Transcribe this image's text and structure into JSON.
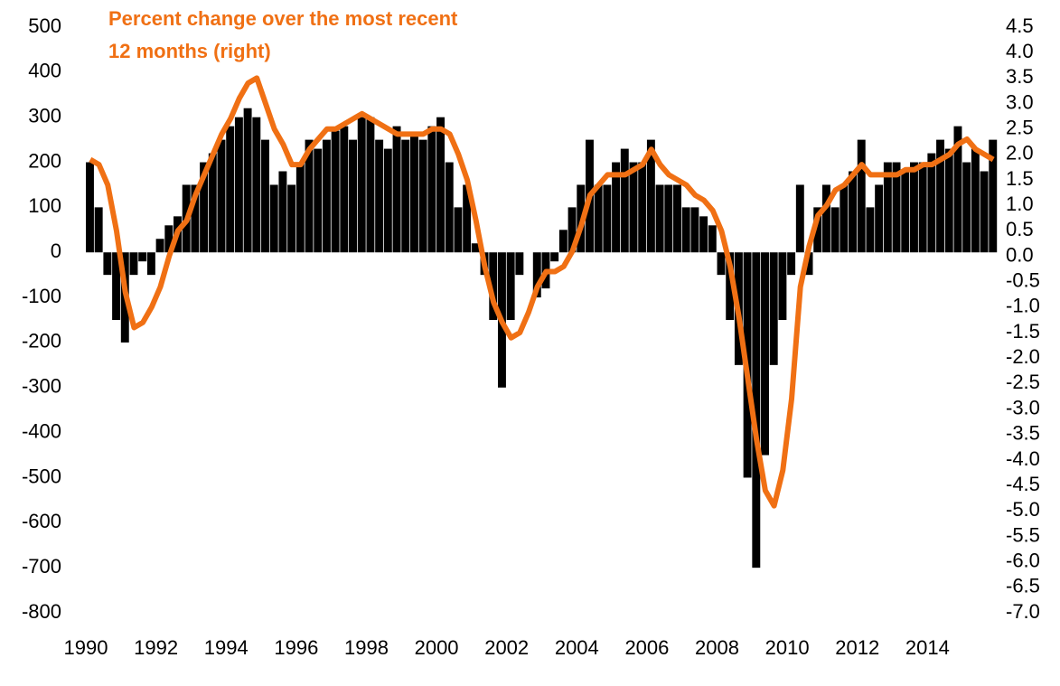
{
  "chart_data": {
    "type": "bar-line",
    "annotation": [
      "Percent change over the most recent",
      "12 months (right)"
    ],
    "x": [
      1990,
      1990.25,
      1990.5,
      1990.75,
      1991,
      1991.25,
      1991.5,
      1991.75,
      1992,
      1992.25,
      1992.5,
      1992.75,
      1993,
      1993.25,
      1993.5,
      1993.75,
      1994,
      1994.25,
      1994.5,
      1994.75,
      1995,
      1995.25,
      1995.5,
      1995.75,
      1996,
      1996.25,
      1996.5,
      1996.75,
      1997,
      1997.25,
      1997.5,
      1997.75,
      1998,
      1998.25,
      1998.5,
      1998.75,
      1999,
      1999.25,
      1999.5,
      1999.75,
      2000,
      2000.25,
      2000.5,
      2000.75,
      2001,
      2001.25,
      2001.5,
      2001.75,
      2002,
      2002.25,
      2002.5,
      2002.75,
      2003,
      2003.25,
      2003.5,
      2003.75,
      2004,
      2004.25,
      2004.5,
      2004.75,
      2005,
      2005.25,
      2005.5,
      2005.75,
      2006,
      2006.25,
      2006.5,
      2006.75,
      2007,
      2007.25,
      2007.5,
      2007.75,
      2008,
      2008.25,
      2008.5,
      2008.75,
      2009,
      2009.25,
      2009.5,
      2009.75,
      2010,
      2010.25,
      2010.5,
      2010.75,
      2011,
      2011.25,
      2011.5,
      2011.75,
      2012,
      2012.25,
      2012.5,
      2012.75,
      2013,
      2013.25,
      2013.5,
      2013.75,
      2014,
      2014.25,
      2014.5,
      2014.75,
      2015,
      2015.25,
      2015.5,
      2015.75
    ],
    "series": [
      {
        "type": "bar",
        "color": "#000000",
        "values": [
          200,
          100,
          -50,
          -150,
          -200,
          -50,
          -20,
          -50,
          30,
          60,
          80,
          150,
          150,
          200,
          220,
          250,
          280,
          300,
          320,
          300,
          250,
          150,
          180,
          150,
          200,
          250,
          230,
          250,
          270,
          280,
          250,
          300,
          300,
          250,
          230,
          280,
          250,
          260,
          250,
          280,
          300,
          200,
          100,
          150,
          20,
          -50,
          -150,
          -300,
          -150,
          -50,
          0,
          -100,
          -80,
          -20,
          50,
          100,
          150,
          250,
          150,
          150,
          200,
          230,
          200,
          200,
          250,
          150,
          150,
          150,
          100,
          100,
          80,
          60,
          -50,
          -150,
          -250,
          -500,
          -700,
          -450,
          -250,
          -150,
          -50,
          150,
          -50,
          100,
          150,
          100,
          150,
          180,
          250,
          100,
          150,
          200,
          200,
          180,
          200,
          200,
          220,
          250,
          230,
          280,
          200,
          230,
          180,
          250
        ]
      },
      {
        "type": "line",
        "axis": "y2",
        "color": "#f07014",
        "values": [
          1.9,
          1.8,
          1.4,
          0.5,
          -0.7,
          -1.4,
          -1.3,
          -1.0,
          -0.6,
          0.0,
          0.5,
          0.7,
          1.2,
          1.6,
          2.0,
          2.4,
          2.7,
          3.1,
          3.4,
          3.5,
          3.0,
          2.5,
          2.2,
          1.8,
          1.8,
          2.1,
          2.3,
          2.5,
          2.5,
          2.6,
          2.7,
          2.8,
          2.7,
          2.6,
          2.5,
          2.4,
          2.4,
          2.4,
          2.4,
          2.5,
          2.5,
          2.4,
          2.0,
          1.5,
          0.7,
          -0.2,
          -0.9,
          -1.3,
          -1.6,
          -1.5,
          -1.1,
          -0.6,
          -0.3,
          -0.3,
          -0.2,
          0.1,
          0.6,
          1.2,
          1.4,
          1.6,
          1.6,
          1.6,
          1.7,
          1.8,
          2.1,
          1.8,
          1.6,
          1.5,
          1.4,
          1.2,
          1.1,
          0.9,
          0.5,
          -0.2,
          -1.2,
          -2.4,
          -3.6,
          -4.6,
          -4.9,
          -4.2,
          -2.8,
          -0.6,
          0.2,
          0.8,
          1.0,
          1.3,
          1.4,
          1.6,
          1.8,
          1.6,
          1.6,
          1.6,
          1.6,
          1.7,
          1.7,
          1.8,
          1.8,
          1.9,
          2.0,
          2.2,
          2.3,
          2.1,
          2.0,
          1.9
        ]
      }
    ],
    "xlim": [
      1990,
      2016
    ],
    "xticks": [
      1990,
      1992,
      1994,
      1996,
      1998,
      2000,
      2002,
      2004,
      2006,
      2008,
      2010,
      2012,
      2014
    ],
    "ylim": [
      -800,
      500
    ],
    "yticks": [
      500,
      400,
      300,
      200,
      100,
      0,
      -100,
      -200,
      -300,
      -400,
      -500,
      -600,
      -700,
      -800
    ],
    "y2lim": [
      -7,
      4.5
    ],
    "y2ticks": [
      4.5,
      {
        "value": 4,
        "label": "4.0"
      },
      3.5,
      {
        "value": 3,
        "label": "3.0"
      },
      2.5,
      {
        "value": 2,
        "label": "2.0"
      },
      1.5,
      {
        "value": 1,
        "label": "1.0"
      },
      0.5,
      {
        "value": 0,
        "label": "0.0"
      },
      -0.5,
      {
        "value": -1,
        "label": "-1.0"
      },
      -1.5,
      {
        "value": -2,
        "label": "-2.0"
      },
      -2.5,
      {
        "value": -3,
        "label": "-3.0"
      },
      -3.5,
      {
        "value": -4,
        "label": "-4.0"
      },
      -4.5,
      {
        "value": -5,
        "label": "-5.0"
      },
      -5.5,
      {
        "value": -6,
        "label": "-6.0"
      },
      -6.5,
      {
        "value": -7,
        "label": "-7.0"
      }
    ]
  }
}
